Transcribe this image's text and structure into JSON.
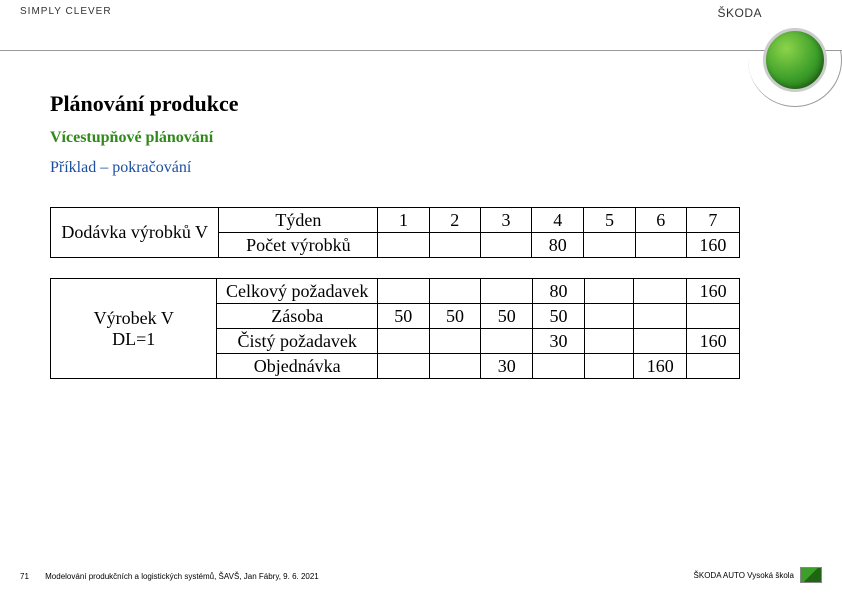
{
  "header": {
    "tagline": "SIMPLY CLEVER",
    "brand_name": "ŠKODA"
  },
  "titles": {
    "h1": "Plánování produkce",
    "h2": "Vícestupňové plánování",
    "h3": "Příklad – pokračování"
  },
  "table1": {
    "label": "Dodávka výrobků V",
    "row1_label": "Týden",
    "row1": [
      "1",
      "2",
      "3",
      "4",
      "5",
      "6",
      "7"
    ],
    "row2_label": "Počet výrobků",
    "row2": [
      "",
      "",
      "",
      "80",
      "",
      "",
      "160"
    ]
  },
  "table2": {
    "left_line1": "Výrobek V",
    "left_line2": "DL=1",
    "r1_label": "Celkový požadavek",
    "r1": [
      "",
      "",
      "",
      "80",
      "",
      "",
      "160"
    ],
    "r2_label": "Zásoba",
    "r2": [
      "50",
      "50",
      "50",
      "50",
      "",
      "",
      ""
    ],
    "r3_label": "Čistý požadavek",
    "r3": [
      "",
      "",
      "",
      "30",
      "",
      "",
      "160"
    ],
    "r4_label": "Objednávka",
    "r4": [
      "",
      "",
      "30",
      "",
      "",
      "160",
      ""
    ]
  },
  "footer": {
    "page": "71",
    "text": "Modelování produkčních a logistických systémů, ŠAVŠ, Jan Fábry, 9. 6. 2021",
    "right": "ŠKODA AUTO Vysoká škola"
  }
}
